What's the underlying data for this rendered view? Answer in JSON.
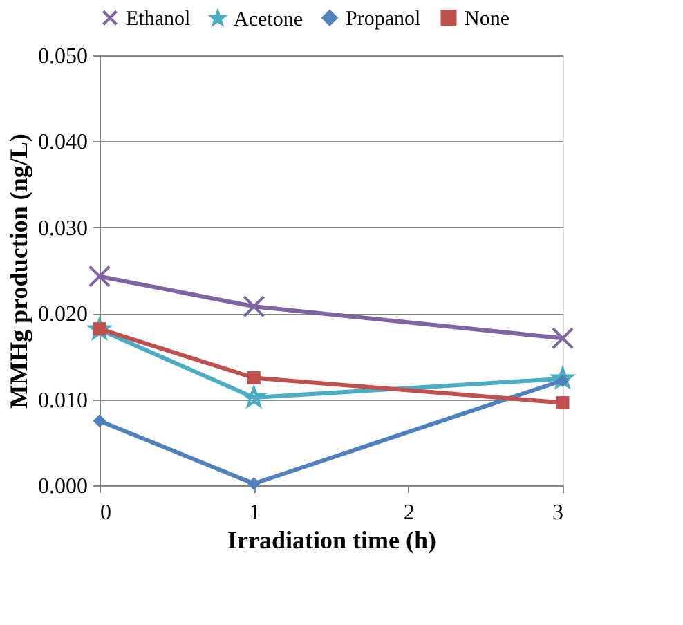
{
  "chart_data": {
    "type": "line",
    "xlabel": "Irradiation time (h)",
    "ylabel": "MMHg production (ng/L)",
    "x": [
      0,
      1,
      3
    ],
    "series": [
      {
        "name": "Ethanol",
        "color": "#8064a2",
        "marker": "cross",
        "values": [
          0.0243,
          0.0208,
          0.0171
        ]
      },
      {
        "name": "Acetone",
        "color": "#4bacc6",
        "marker": "star",
        "values": [
          0.0181,
          0.0102,
          0.0124
        ]
      },
      {
        "name": "Propanol",
        "color": "#4f81bd",
        "marker": "diamond",
        "values": [
          0.0075,
          0.0002,
          0.0122
        ]
      },
      {
        "name": "None",
        "color": "#c0504d",
        "marker": "square",
        "values": [
          0.0182,
          0.0125,
          0.0096
        ]
      }
    ],
    "xlim": [
      0,
      3
    ],
    "xticks": [
      0,
      1,
      2,
      3
    ],
    "ylim": [
      0,
      0.05
    ],
    "yticks": [
      {
        "value": 0,
        "label": "0.000"
      },
      {
        "value": 0.01,
        "label": "0.010"
      },
      {
        "value": 0.02,
        "label": "0.020"
      },
      {
        "value": 0.03,
        "label": "0.030"
      },
      {
        "value": 0.04,
        "label": "0.040"
      },
      {
        "value": 0.05,
        "label": "0.050"
      }
    ],
    "grid": "y",
    "legend": "top",
    "line_style": "solid"
  }
}
